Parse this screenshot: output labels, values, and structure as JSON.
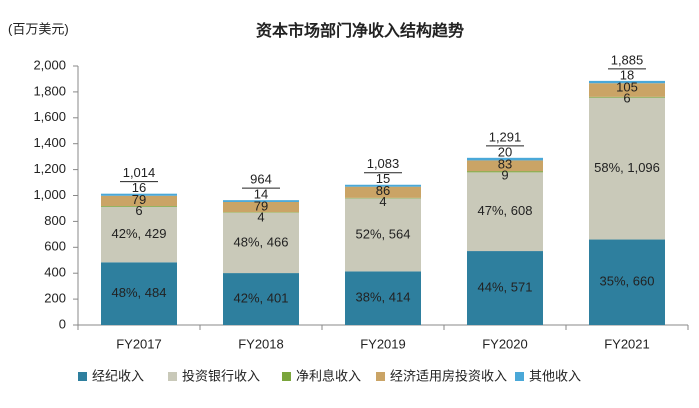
{
  "chart_data": {
    "type": "stacked-bar",
    "title": "资本市场部门净收入结构趋势",
    "y_label": "(百万美元)",
    "categories": [
      "FY2017",
      "FY2018",
      "FY2019",
      "FY2020",
      "FY2021"
    ],
    "series": [
      {
        "name": "经纪收入",
        "color": "#2e7f9e",
        "values": [
          484,
          401,
          414,
          571,
          660
        ],
        "value_labels": [
          "48%, 484",
          "42%, 401",
          "38%, 414",
          "44%, 571",
          "35%, 660"
        ]
      },
      {
        "name": "投资银行收入",
        "color": "#c9c9b9",
        "values": [
          429,
          466,
          564,
          608,
          1096
        ],
        "value_labels": [
          "42%, 429",
          "48%, 466",
          "52%, 564",
          "47%, 608",
          "58%, 1,096"
        ]
      },
      {
        "name": "净利息收入",
        "color": "#7aa53c",
        "values": [
          6,
          4,
          4,
          9,
          6
        ]
      },
      {
        "name": "经济适用房投资收入",
        "color": "#caa466",
        "values": [
          79,
          79,
          86,
          83,
          105
        ]
      },
      {
        "name": "其他收入",
        "color": "#4aa8d8",
        "values": [
          16,
          14,
          15,
          20,
          18
        ]
      }
    ],
    "totals": {
      "values": [
        1014,
        964,
        1083,
        1291,
        1885
      ],
      "value_labels": [
        "1,014",
        "964",
        "1,083",
        "1,291",
        "1,885"
      ]
    },
    "ylim": [
      0,
      2000
    ],
    "yticks": [
      0,
      200,
      400,
      600,
      800,
      {
        "value": 1000,
        "label": "1,000"
      },
      {
        "value": 1200,
        "label": "1,200"
      },
      {
        "value": 1400,
        "label": "1,400"
      },
      {
        "value": 1600,
        "label": "1,600"
      },
      {
        "value": 1800,
        "label": "1,800"
      },
      {
        "value": 2000,
        "label": "2,000"
      }
    ],
    "grid": false
  }
}
